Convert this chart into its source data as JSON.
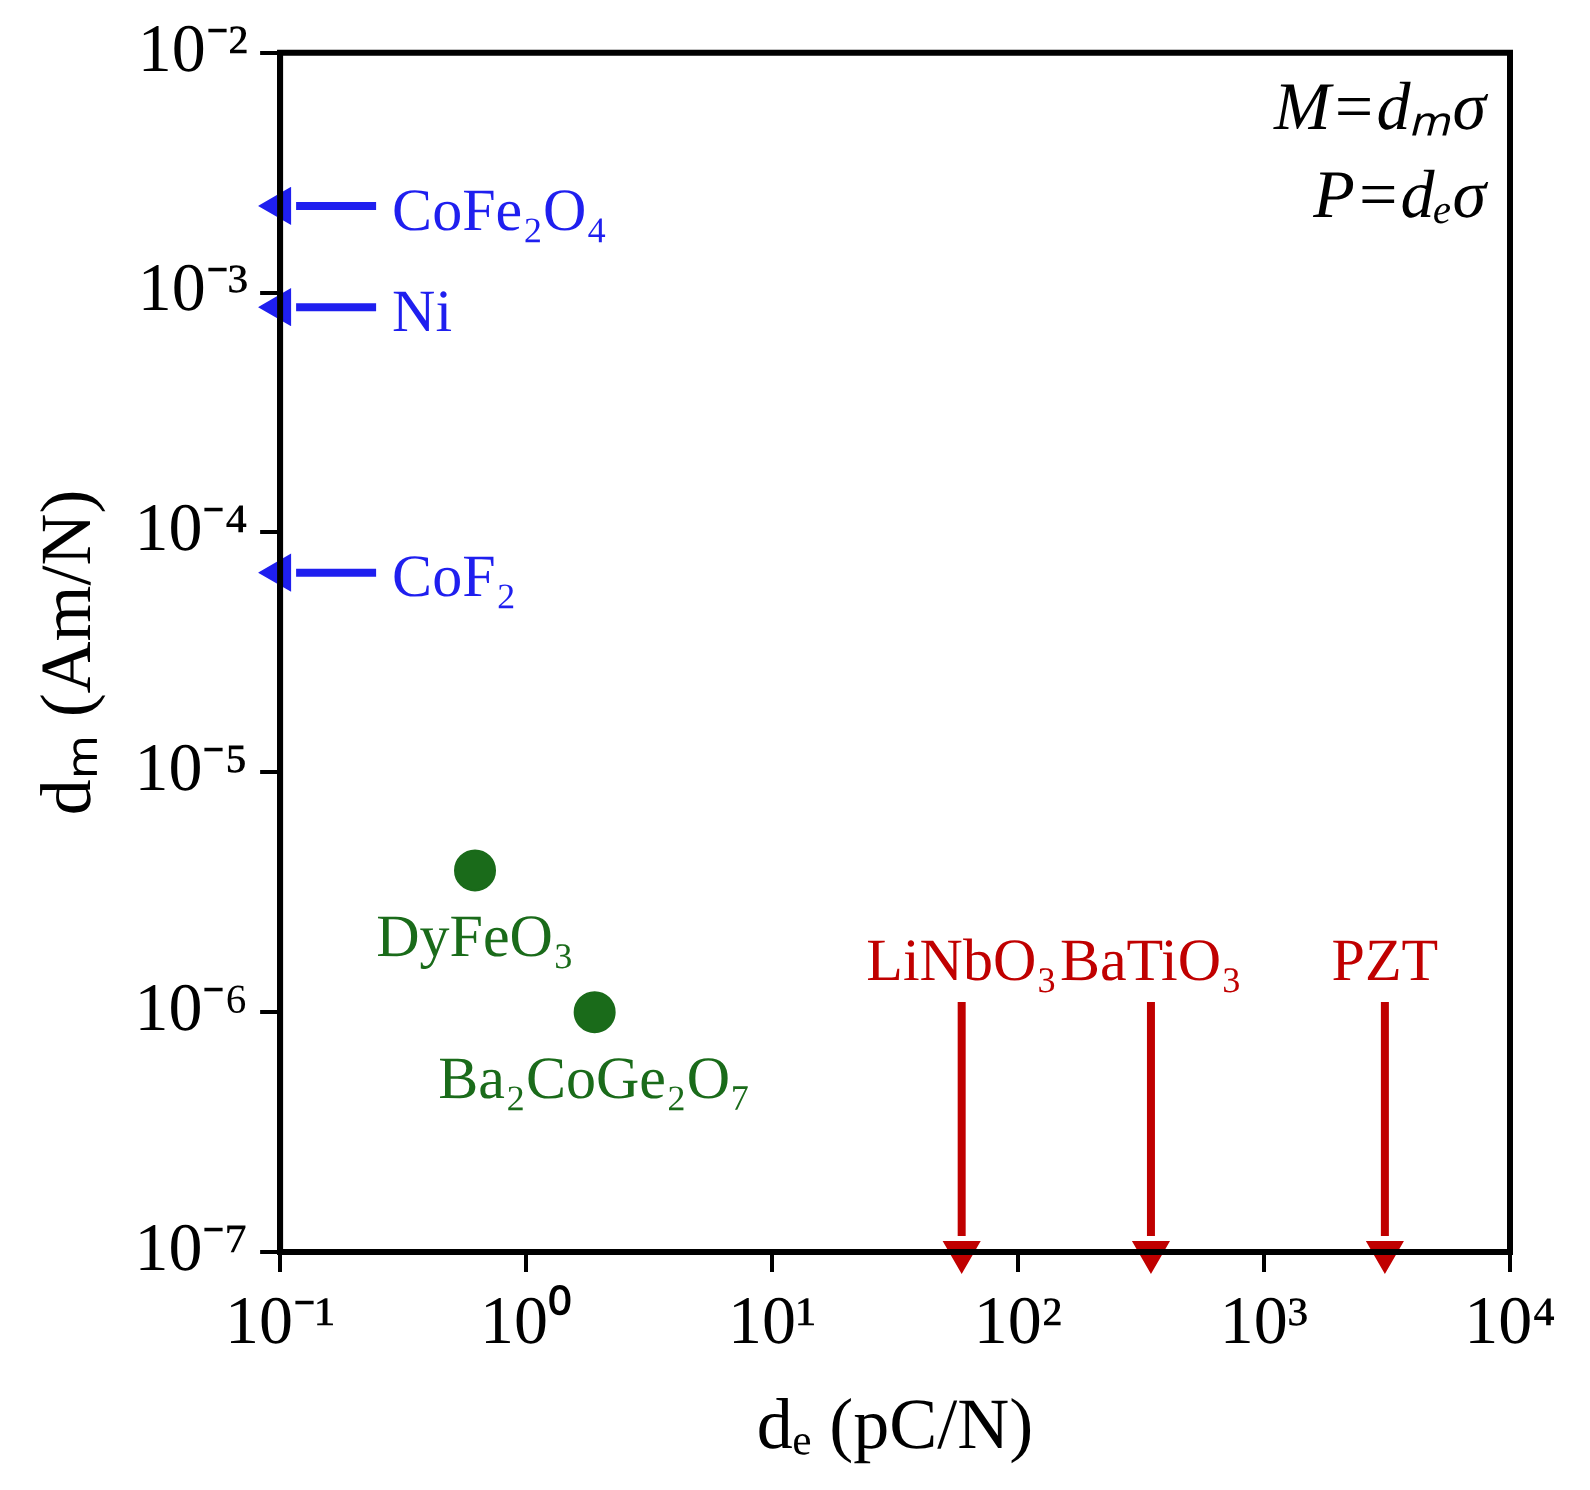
{
  "chart_data": {
    "type": "scatter",
    "xlabel": "dₑ (pC/N)",
    "ylabel": "dₘ (Am/N)",
    "log": "xy",
    "xlim": [
      0.1,
      10000
    ],
    "ylim": [
      1e-07,
      0.01
    ],
    "xticks": [
      {
        "value": 0.1,
        "label": "10⁻¹"
      },
      {
        "value": 1,
        "label": "10⁰"
      },
      {
        "value": 10,
        "label": "10¹"
      },
      {
        "value": 100,
        "label": "10²"
      },
      {
        "value": 1000,
        "label": "10³"
      },
      {
        "value": 10000,
        "label": "10⁴"
      }
    ],
    "yticks": [
      {
        "value": 1e-07,
        "label": "10⁻⁷"
      },
      {
        "value": 1e-06,
        "label": "10⁻⁶"
      },
      {
        "value": 1e-05,
        "label": "10⁻⁵"
      },
      {
        "value": 0.0001,
        "label": "10⁻⁴"
      },
      {
        "value": 0.001,
        "label": "10⁻³"
      },
      {
        "value": 0.01,
        "label": "10⁻²"
      }
    ],
    "series": [
      {
        "color": "#1a6b1a",
        "x": [
          0.62,
          1.9
        ],
        "values": [
          3.9e-06,
          1e-06
        ]
      },
      {
        "color": "#1f1fef",
        "marker": "triangle",
        "x": [
          0.1,
          0.1,
          0.1
        ],
        "values": [
          0.0023,
          0.00087,
          6.8e-05
        ]
      },
      {
        "color": "#c00000",
        "marker": "triangle",
        "x": [
          59,
          347,
          3100
        ],
        "values": [
          1e-07,
          1e-07,
          1e-07
        ]
      }
    ],
    "marker": "circle",
    "legend": false,
    "grid": false,
    "annotations": [
      "M=dₘσ",
      "P=dₑσ",
      {
        "text": "CoFe₂O₄",
        "x": 0.1,
        "y": 0.0023
      },
      {
        "text": "Ni",
        "x": 0.1,
        "y": 0.00087
      },
      {
        "text": "CoF₂",
        "x": 0.1,
        "y": 6.8e-05
      },
      {
        "text": "DyFeO₃",
        "x": 0.62,
        "y": 3.9e-06
      },
      {
        "text": "Ba₂CoGe₂O₇",
        "x": 1.9,
        "y": 1e-06
      },
      {
        "text": "LiNbO₃",
        "x": 59,
        "y": 1e-07
      },
      {
        "text": "BaTiO₃",
        "x": 347,
        "y": 1e-07
      },
      {
        "text": "PZT",
        "x": 3100,
        "y": 1e-07
      }
    ]
  }
}
